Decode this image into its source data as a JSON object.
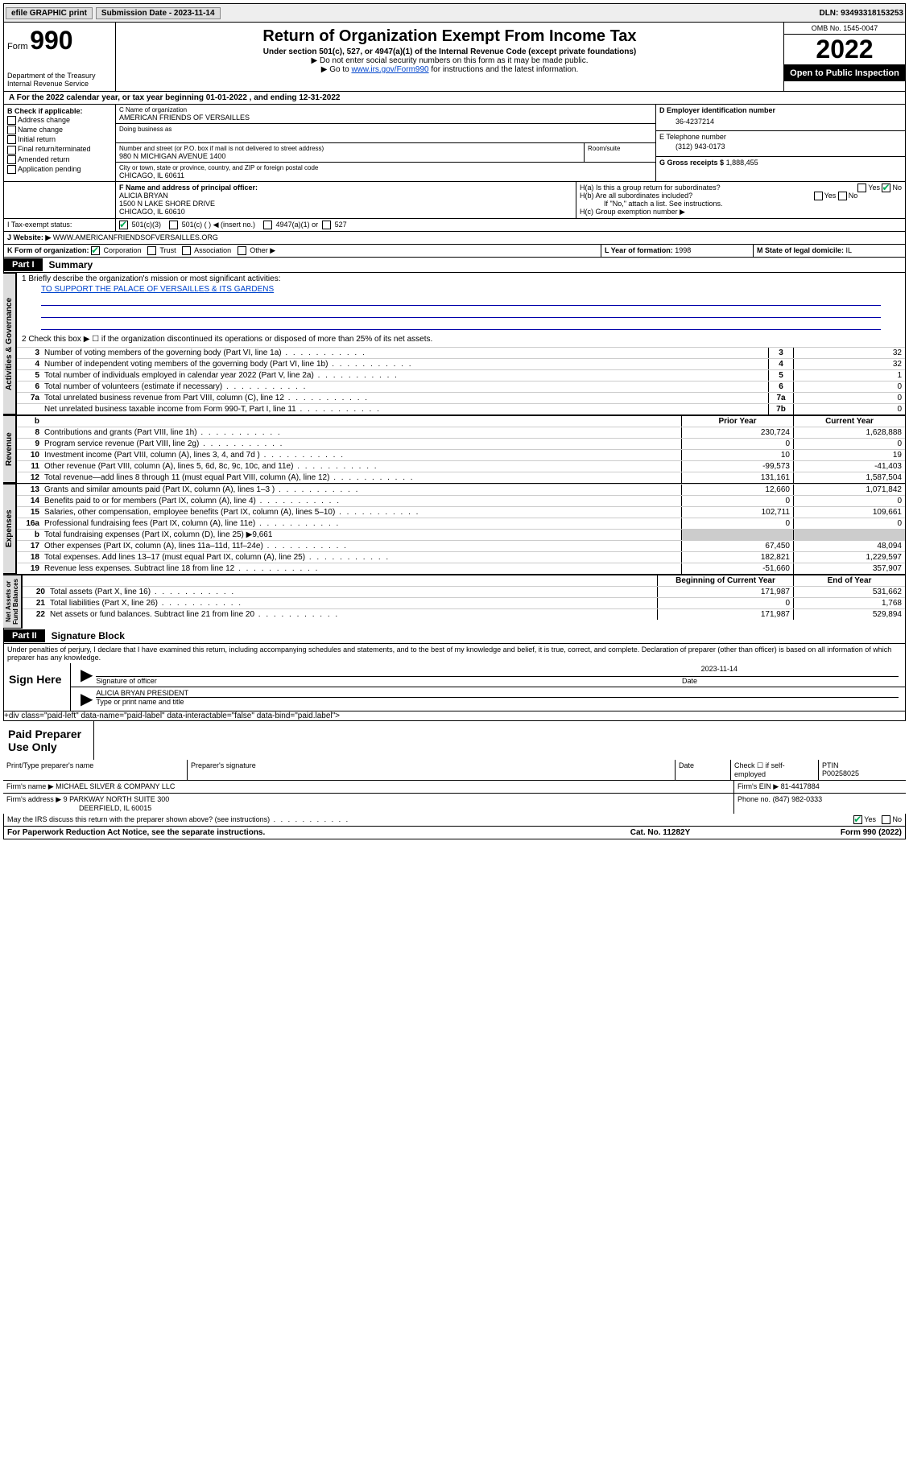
{
  "topbar": {
    "efile": "efile GRAPHIC print",
    "submission_label": "Submission Date - 2023-11-14",
    "dln": "DLN: 93493318153253"
  },
  "header": {
    "form_label": "Form",
    "form_number": "990",
    "dept": "Department of the Treasury\nInternal Revenue Service",
    "title": "Return of Organization Exempt From Income Tax",
    "subtitle": "Under section 501(c), 527, or 4947(a)(1) of the Internal Revenue Code (except private foundations)",
    "note1": "▶ Do not enter social security numbers on this form as it may be made public.",
    "note2_pre": "▶ Go to ",
    "note2_link": "www.irs.gov/Form990",
    "note2_post": " for instructions and the latest information.",
    "omb": "OMB No. 1545-0047",
    "year": "2022",
    "open": "Open to Public Inspection"
  },
  "section_a": "A For the 2022 calendar year, or tax year beginning 01-01-2022   , and ending 12-31-2022",
  "col_b": {
    "label": "B Check if applicable:",
    "items": [
      "Address change",
      "Name change",
      "Initial return",
      "Final return/terminated",
      "Amended return",
      "Application pending"
    ]
  },
  "col_c": {
    "name_label": "C Name of organization",
    "name": "AMERICAN FRIENDS OF VERSAILLES",
    "dba_label": "Doing business as",
    "street_label": "Number and street (or P.O. box if mail is not delivered to street address)",
    "street": "980 N MICHIGAN AVENUE 1400",
    "room_label": "Room/suite",
    "city_label": "City or town, state or province, country, and ZIP or foreign postal code",
    "city": "CHICAGO, IL  60611"
  },
  "col_d": {
    "ein_label": "D Employer identification number",
    "ein": "36-4237214",
    "phone_label": "E Telephone number",
    "phone": "(312) 943-0173",
    "gross_label": "G Gross receipts $",
    "gross": "1,888,455"
  },
  "line_f": {
    "label": "F Name and address of principal officer:",
    "name": "ALICIA BRYAN",
    "addr1": "1500 N LAKE SHORE DRIVE",
    "addr2": "CHICAGO, IL  60610"
  },
  "line_h": {
    "ha": "H(a)  Is this a group return for subordinates?",
    "hb": "H(b)  Are all subordinates included?",
    "hb_note": "If \"No,\" attach a list. See instructions.",
    "hc": "H(c)  Group exemption number ▶"
  },
  "line_i": {
    "label": "I   Tax-exempt status:",
    "opts": [
      "501(c)(3)",
      "501(c) (  ) ◀ (insert no.)",
      "4947(a)(1) or",
      "527"
    ]
  },
  "line_j": {
    "label": "J   Website: ▶",
    "value": "WWW.AMERICANFRIENDSOFVERSAILLES.ORG"
  },
  "line_k": {
    "label": "K Form of organization:",
    "opts": [
      "Corporation",
      "Trust",
      "Association",
      "Other ▶"
    ],
    "l_label": "L Year of formation:",
    "l_val": "1998",
    "m_label": "M State of legal domicile:",
    "m_val": "IL"
  },
  "part1": {
    "label": "Part I",
    "title": "Summary",
    "mission_label": "1   Briefly describe the organization's mission or most significant activities:",
    "mission": "TO SUPPORT THE PALACE OF VERSAILLES & ITS GARDENS",
    "line2": "2   Check this box ▶ ☐  if the organization discontinued its operations or disposed of more than 25% of its net assets.",
    "lines_gov": [
      {
        "n": "3",
        "t": "Number of voting members of the governing body (Part VI, line 1a)",
        "b": "3",
        "v": "32"
      },
      {
        "n": "4",
        "t": "Number of independent voting members of the governing body (Part VI, line 1b)",
        "b": "4",
        "v": "32"
      },
      {
        "n": "5",
        "t": "Total number of individuals employed in calendar year 2022 (Part V, line 2a)",
        "b": "5",
        "v": "1"
      },
      {
        "n": "6",
        "t": "Total number of volunteers (estimate if necessary)",
        "b": "6",
        "v": "0"
      },
      {
        "n": "7a",
        "t": "Total unrelated business revenue from Part VIII, column (C), line 12",
        "b": "7a",
        "v": "0"
      },
      {
        "n": "",
        "t": "Net unrelated business taxable income from Form 990-T, Part I, line 11",
        "b": "7b",
        "v": "0"
      }
    ],
    "hdr_prior": "Prior Year",
    "hdr_current": "Current Year",
    "lines_rev": [
      {
        "n": "8",
        "t": "Contributions and grants (Part VIII, line 1h)",
        "p": "230,724",
        "c": "1,628,888"
      },
      {
        "n": "9",
        "t": "Program service revenue (Part VIII, line 2g)",
        "p": "0",
        "c": "0"
      },
      {
        "n": "10",
        "t": "Investment income (Part VIII, column (A), lines 3, 4, and 7d )",
        "p": "10",
        "c": "19"
      },
      {
        "n": "11",
        "t": "Other revenue (Part VIII, column (A), lines 5, 6d, 8c, 9c, 10c, and 11e)",
        "p": "-99,573",
        "c": "-41,403"
      },
      {
        "n": "12",
        "t": "Total revenue—add lines 8 through 11 (must equal Part VIII, column (A), line 12)",
        "p": "131,161",
        "c": "1,587,504"
      }
    ],
    "lines_exp": [
      {
        "n": "13",
        "t": "Grants and similar amounts paid (Part IX, column (A), lines 1–3 )",
        "p": "12,660",
        "c": "1,071,842"
      },
      {
        "n": "14",
        "t": "Benefits paid to or for members (Part IX, column (A), line 4)",
        "p": "0",
        "c": "0"
      },
      {
        "n": "15",
        "t": "Salaries, other compensation, employee benefits (Part IX, column (A), lines 5–10)",
        "p": "102,711",
        "c": "109,661"
      },
      {
        "n": "16a",
        "t": "Professional fundraising fees (Part IX, column (A), line 11e)",
        "p": "0",
        "c": "0"
      },
      {
        "n": "b",
        "t": "Total fundraising expenses (Part IX, column (D), line 25) ▶9,661",
        "p": "",
        "c": "",
        "shade": true
      },
      {
        "n": "17",
        "t": "Other expenses (Part IX, column (A), lines 11a–11d, 11f–24e)",
        "p": "67,450",
        "c": "48,094"
      },
      {
        "n": "18",
        "t": "Total expenses. Add lines 13–17 (must equal Part IX, column (A), line 25)",
        "p": "182,821",
        "c": "1,229,597"
      },
      {
        "n": "19",
        "t": "Revenue less expenses. Subtract line 18 from line 12",
        "p": "-51,660",
        "c": "357,907"
      }
    ],
    "hdr_begin": "Beginning of Current Year",
    "hdr_end": "End of Year",
    "lines_net": [
      {
        "n": "20",
        "t": "Total assets (Part X, line 16)",
        "p": "171,987",
        "c": "531,662"
      },
      {
        "n": "21",
        "t": "Total liabilities (Part X, line 26)",
        "p": "0",
        "c": "1,768"
      },
      {
        "n": "22",
        "t": "Net assets or fund balances. Subtract line 21 from line 20",
        "p": "171,987",
        "c": "529,894"
      }
    ]
  },
  "part2": {
    "label": "Part II",
    "title": "Signature Block",
    "penalty": "Under penalties of perjury, I declare that I have examined this return, including accompanying schedules and statements, and to the best of my knowledge and belief, it is true, correct, and complete. Declaration of preparer (other than officer) is based on all information of which preparer has any knowledge.",
    "sign_here": "Sign Here",
    "sig_officer": "Signature of officer",
    "date_label": "Date",
    "date": "2023-11-14",
    "name_title": "ALICIA BRYAN  PRESIDENT",
    "type_label": "Type or print name and title"
  },
  "paid": {
    "label": "Paid Preparer Use Only",
    "h_name": "Print/Type preparer's name",
    "h_sig": "Preparer's signature",
    "h_date": "Date",
    "h_check": "Check ☐ if self-employed",
    "h_ptin": "PTIN",
    "ptin": "P00258025",
    "firm_name_label": "Firm's name    ▶",
    "firm_name": "MICHAEL SILVER & COMPANY LLC",
    "firm_ein_label": "Firm's EIN ▶",
    "firm_ein": "81-4417884",
    "firm_addr_label": "Firm's address ▶",
    "firm_addr1": "9 PARKWAY NORTH SUITE 300",
    "firm_addr2": "DEERFIELD, IL  60015",
    "phone_label": "Phone no.",
    "phone": "(847) 982-0333",
    "discuss": "May the IRS discuss this return with the preparer shown above? (see instructions)"
  },
  "footer": {
    "left": "For Paperwork Reduction Act Notice, see the separate instructions.",
    "mid": "Cat. No. 11282Y",
    "right": "Form 990 (2022)"
  },
  "labels": {
    "yes": "Yes",
    "no": "No",
    "b": "b"
  }
}
